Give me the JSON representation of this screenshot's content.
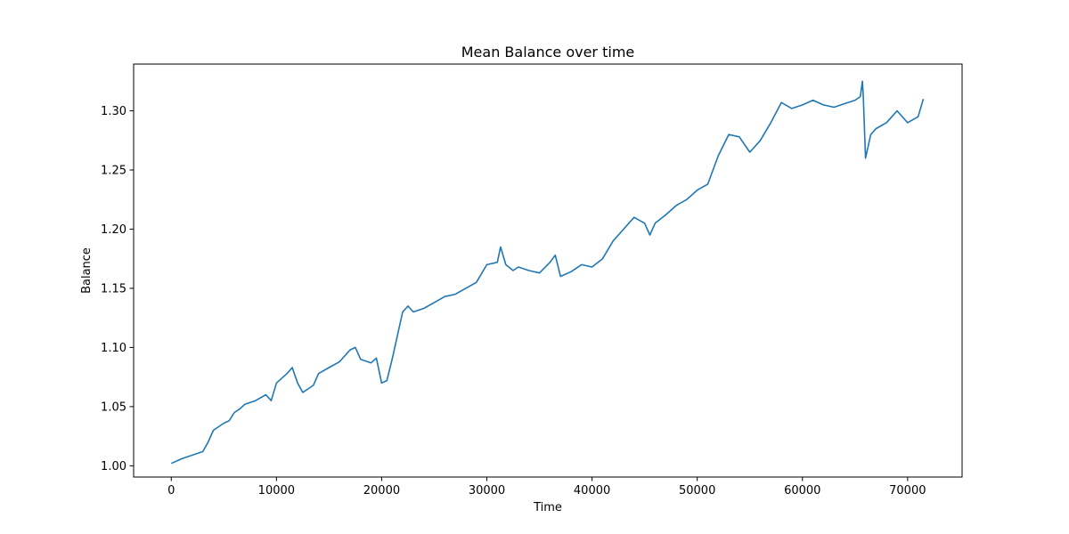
{
  "chart_data": {
    "type": "line",
    "title": "Mean Balance over time",
    "xlabel": "Time",
    "ylabel": "Balance",
    "xlim": [
      -3580,
      75180
    ],
    "ylim": [
      0.9905,
      1.3395
    ],
    "xticks": [
      0,
      10000,
      20000,
      30000,
      40000,
      50000,
      60000,
      70000
    ],
    "xtick_labels": [
      "0",
      "10000",
      "20000",
      "30000",
      "40000",
      "50000",
      "60000",
      "70000"
    ],
    "yticks": [
      1.0,
      1.05,
      1.1,
      1.15,
      1.2,
      1.25,
      1.3
    ],
    "ytick_labels": [
      "1.00",
      "1.05",
      "1.10",
      "1.15",
      "1.20",
      "1.25",
      "1.30"
    ],
    "grid": false,
    "legend": "none",
    "series": [
      {
        "color": "#1f77b4",
        "x": [
          0,
          1000,
          2000,
          3000,
          3500,
          4000,
          5000,
          5500,
          6000,
          6500,
          7000,
          8000,
          9000,
          9500,
          10000,
          11000,
          11500,
          12000,
          12500,
          13000,
          13500,
          14000,
          15000,
          16000,
          17000,
          17500,
          18000,
          19000,
          19500,
          20000,
          20500,
          21000,
          21500,
          22000,
          22500,
          23000,
          24000,
          25000,
          26000,
          27000,
          28000,
          29000,
          30000,
          31000,
          31300,
          31800,
          32500,
          33000,
          34000,
          35000,
          36000,
          36500,
          37000,
          38000,
          39000,
          40000,
          41000,
          42000,
          43000,
          44000,
          45000,
          45500,
          46000,
          47000,
          48000,
          49000,
          50000,
          51000,
          52000,
          53000,
          54000,
          55000,
          56000,
          57000,
          58000,
          59000,
          60000,
          61000,
          62000,
          63000,
          64000,
          65000,
          65500,
          65700,
          65800,
          66000,
          66500,
          67000,
          68000,
          69000,
          70000,
          71000,
          71500
        ],
        "y": [
          1.002,
          1.006,
          1.009,
          1.012,
          1.02,
          1.03,
          1.036,
          1.038,
          1.045,
          1.048,
          1.052,
          1.055,
          1.06,
          1.055,
          1.07,
          1.078,
          1.083,
          1.07,
          1.062,
          1.065,
          1.068,
          1.078,
          1.083,
          1.088,
          1.098,
          1.1,
          1.09,
          1.087,
          1.091,
          1.07,
          1.072,
          1.09,
          1.11,
          1.13,
          1.135,
          1.13,
          1.133,
          1.138,
          1.143,
          1.145,
          1.15,
          1.155,
          1.17,
          1.172,
          1.185,
          1.17,
          1.165,
          1.168,
          1.165,
          1.163,
          1.172,
          1.178,
          1.16,
          1.164,
          1.17,
          1.168,
          1.175,
          1.19,
          1.2,
          1.21,
          1.205,
          1.195,
          1.205,
          1.212,
          1.22,
          1.225,
          1.233,
          1.238,
          1.262,
          1.28,
          1.278,
          1.265,
          1.275,
          1.29,
          1.307,
          1.302,
          1.305,
          1.309,
          1.305,
          1.303,
          1.306,
          1.309,
          1.312,
          1.325,
          1.31,
          1.26,
          1.28,
          1.285,
          1.29,
          1.3,
          1.29,
          1.295,
          1.31
        ]
      }
    ]
  }
}
